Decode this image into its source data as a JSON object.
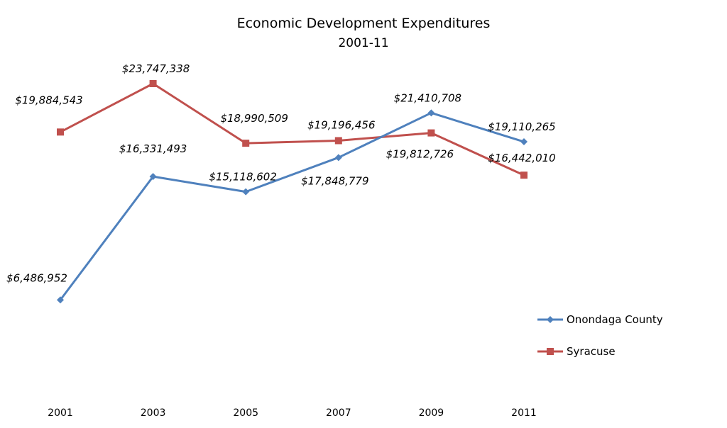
{
  "chart_data": {
    "type": "line",
    "title": "Economic Development Expenditures",
    "subtitle": "2001-11",
    "xlabel": "",
    "ylabel": "",
    "categories": [
      "2001",
      "2003",
      "2005",
      "2007",
      "2009",
      "2011"
    ],
    "ylim": [
      0,
      25000000
    ],
    "grid": false,
    "legend_position": "right",
    "series": [
      {
        "name": "Onondaga County",
        "color": "#4F81BD",
        "marker": "diamond",
        "values": [
          6486952,
          16331493,
          15118602,
          17848779,
          21410708,
          19110265
        ],
        "labels": [
          "$6,486,952",
          "$16,331,493",
          "$15,118,602",
          "$17,848,779",
          "$21,410,708",
          "$19,110,265"
        ]
      },
      {
        "name": "Syracuse",
        "color": "#C0504D",
        "marker": "square",
        "values": [
          19884543,
          23747338,
          18990509,
          19196456,
          19812726,
          16442010
        ],
        "labels": [
          "$19,884,543",
          "$23,747,338",
          "$18,990,509",
          "$19,196,456",
          "$19,812,726",
          "$16,442,010"
        ]
      }
    ]
  }
}
